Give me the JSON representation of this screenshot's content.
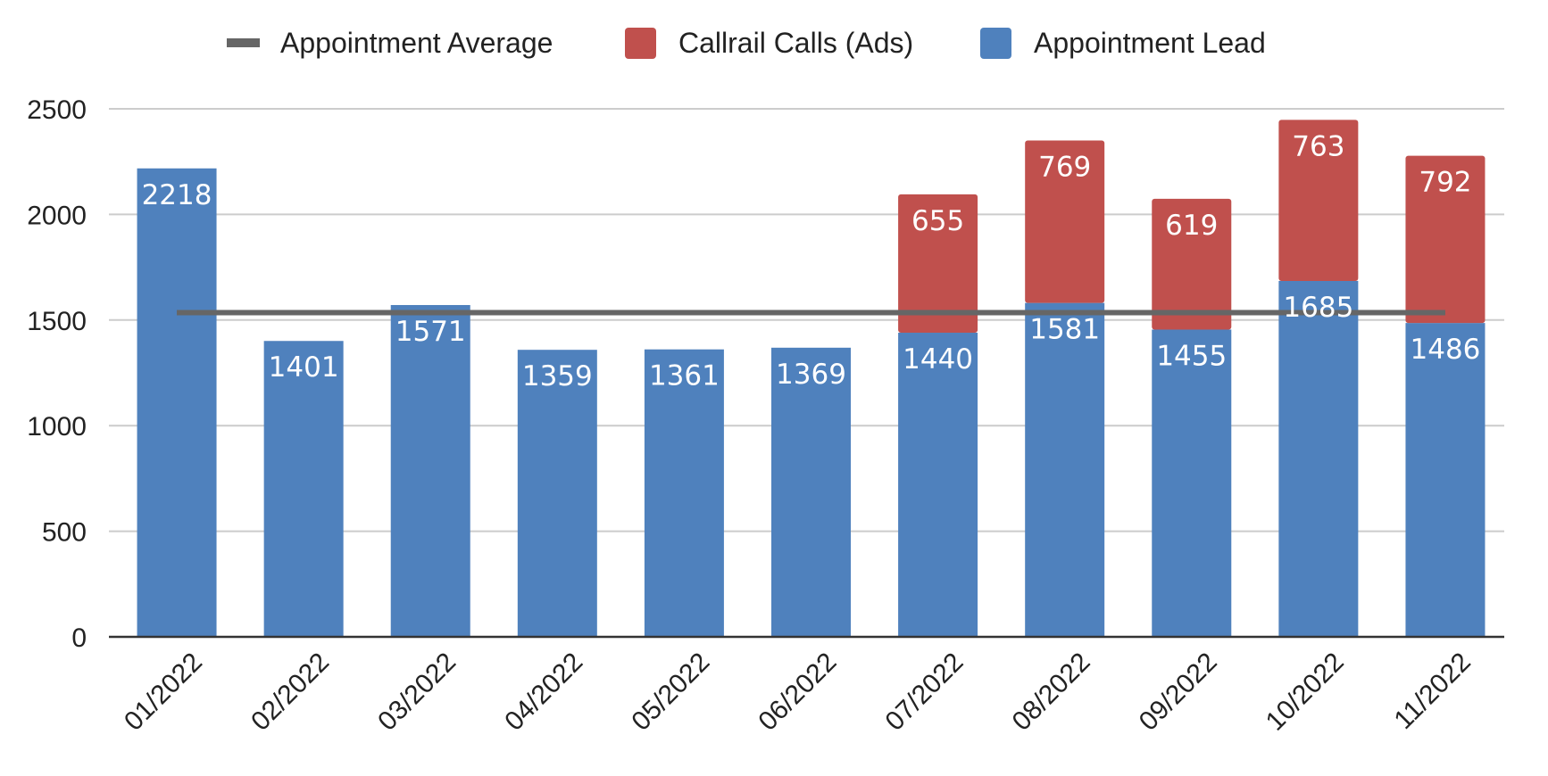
{
  "chart_data": {
    "type": "bar",
    "stacked": true,
    "title": "",
    "xlabel": "",
    "ylabel": "",
    "categories": [
      "01/2022",
      "02/2022",
      "03/2022",
      "04/2022",
      "05/2022",
      "06/2022",
      "07/2022",
      "08/2022",
      "09/2022",
      "10/2022",
      "11/2022"
    ],
    "series": [
      {
        "name": "Appointment Lead",
        "type": "bar",
        "color": "#4f81bd",
        "values": [
          2218,
          1401,
          1571,
          1359,
          1361,
          1369,
          1440,
          1581,
          1455,
          1685,
          1486
        ]
      },
      {
        "name": "Callrail Calls (Ads)",
        "type": "bar",
        "color": "#c0504d",
        "values": [
          null,
          null,
          null,
          null,
          null,
          null,
          655,
          769,
          619,
          763,
          792
        ]
      },
      {
        "name": "Appointment Average",
        "type": "line",
        "color": "#666666",
        "value": 1535
      }
    ],
    "legend": {
      "position": "top",
      "order": [
        "Appointment Average",
        "Callrail Calls (Ads)",
        "Appointment Lead"
      ]
    },
    "ylim": [
      0,
      2500
    ],
    "yticks": [
      0,
      500,
      1000,
      1500,
      2000,
      2500
    ],
    "grid": true
  }
}
